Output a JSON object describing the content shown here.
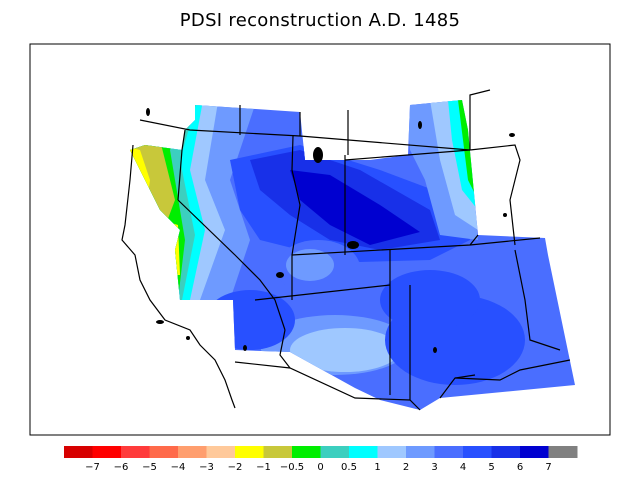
{
  "title": "PDSI reconstruction A.D. 1485",
  "legend": {
    "colors": [
      "#d70000",
      "#ff0000",
      "#ff3b3b",
      "#ff6a4a",
      "#ff9e6e",
      "#ffc99a",
      "#ffff00",
      "#c8c83a",
      "#00ee00",
      "#3ccfbf",
      "#00ffff",
      "#9fc8ff",
      "#6e9aff",
      "#4a6eff",
      "#2850ff",
      "#1830e8",
      "#0000d0",
      "#808080"
    ],
    "tick_labels": [
      "−7",
      "−6",
      "−5",
      "−4",
      "−3",
      "−2",
      "−1",
      "−0.5",
      "0",
      "0.5",
      "1",
      "2",
      "3",
      "4",
      "5",
      "6",
      "7"
    ]
  }
}
